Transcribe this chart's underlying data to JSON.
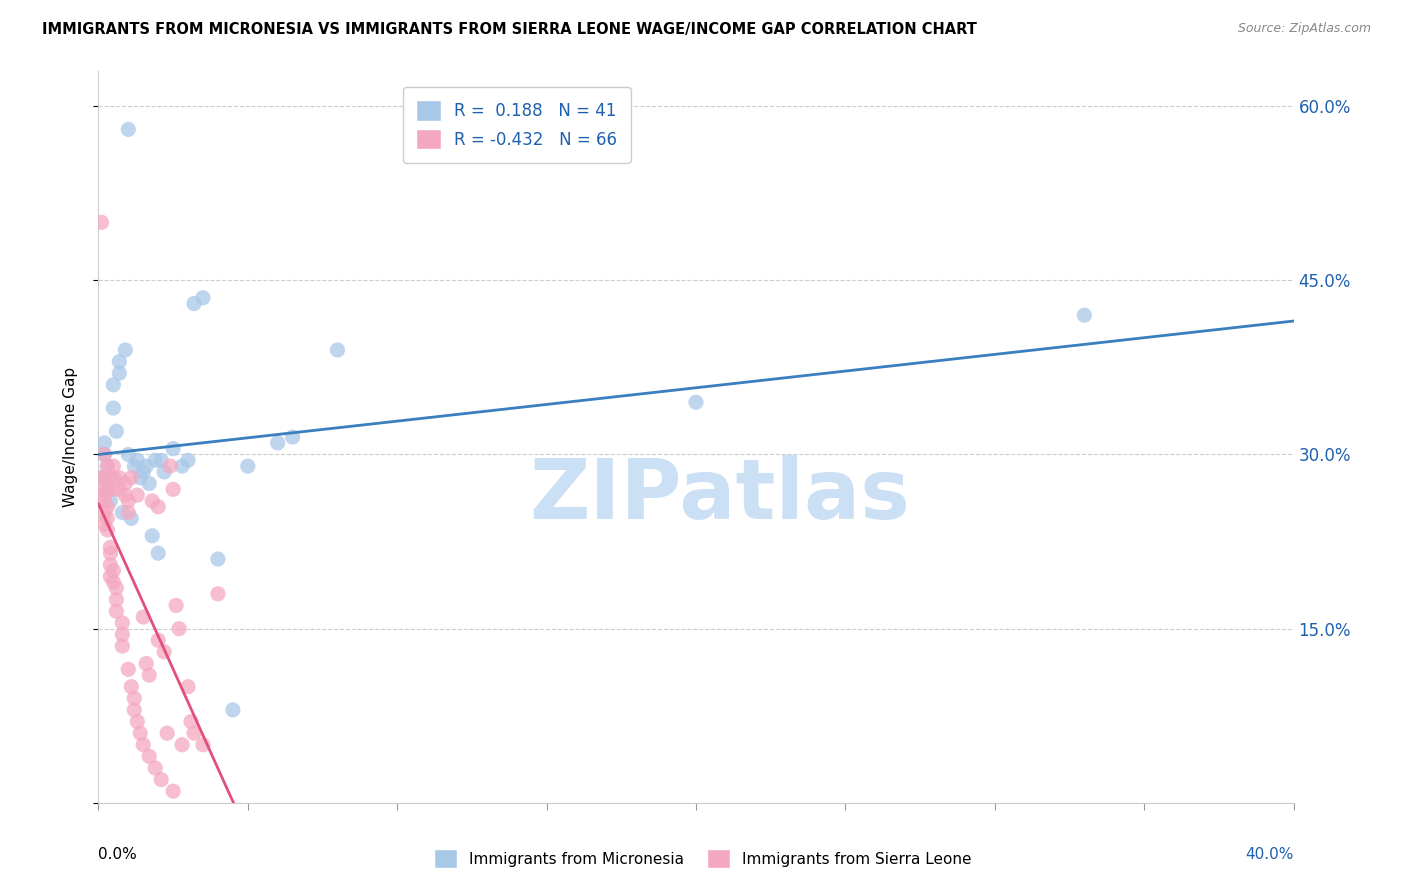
{
  "title": "IMMIGRANTS FROM MICRONESIA VS IMMIGRANTS FROM SIERRA LEONE WAGE/INCOME GAP CORRELATION CHART",
  "source": "Source: ZipAtlas.com",
  "ylabel": "Wage/Income Gap",
  "y_ticks": [
    0.0,
    0.15,
    0.3,
    0.45,
    0.6
  ],
  "y_tick_labels_right": [
    "",
    "15.0%",
    "30.0%",
    "45.0%",
    "60.0%"
  ],
  "xlim": [
    0.0,
    0.4
  ],
  "ylim": [
    0.0,
    0.63
  ],
  "micronesia_R": 0.188,
  "micronesia_N": 41,
  "sierraleone_R": -0.432,
  "sierraleone_N": 66,
  "micronesia_color": "#a8c8e8",
  "sierraleone_color": "#f4a8c0",
  "micronesia_line_color": "#3a7fbf",
  "sierraleone_line_color": "#e0507a",
  "legend_color": "#2060b0",
  "watermark": "ZIPatlas",
  "watermark_color": "#cce0f5",
  "micronesia_x": [
    0.001,
    0.002,
    0.002,
    0.003,
    0.003,
    0.004,
    0.004,
    0.005,
    0.005,
    0.006,
    0.007,
    0.007,
    0.008,
    0.009,
    0.01,
    0.011,
    0.012,
    0.013,
    0.014,
    0.015,
    0.016,
    0.017,
    0.018,
    0.019,
    0.02,
    0.021,
    0.022,
    0.025,
    0.028,
    0.03,
    0.032,
    0.035,
    0.04,
    0.045,
    0.05,
    0.06,
    0.065,
    0.08,
    0.2,
    0.33,
    0.01
  ],
  "micronesia_y": [
    0.28,
    0.3,
    0.31,
    0.27,
    0.29,
    0.26,
    0.28,
    0.34,
    0.36,
    0.32,
    0.37,
    0.38,
    0.25,
    0.39,
    0.3,
    0.245,
    0.29,
    0.295,
    0.28,
    0.285,
    0.29,
    0.275,
    0.23,
    0.295,
    0.215,
    0.295,
    0.285,
    0.305,
    0.29,
    0.295,
    0.43,
    0.435,
    0.21,
    0.08,
    0.29,
    0.31,
    0.315,
    0.39,
    0.345,
    0.42,
    0.58
  ],
  "sierraleone_x": [
    0.001,
    0.001,
    0.001,
    0.002,
    0.002,
    0.002,
    0.002,
    0.002,
    0.003,
    0.003,
    0.003,
    0.003,
    0.003,
    0.003,
    0.004,
    0.004,
    0.004,
    0.004,
    0.005,
    0.005,
    0.005,
    0.005,
    0.005,
    0.006,
    0.006,
    0.006,
    0.007,
    0.007,
    0.008,
    0.008,
    0.008,
    0.009,
    0.009,
    0.01,
    0.01,
    0.01,
    0.011,
    0.011,
    0.012,
    0.012,
    0.013,
    0.013,
    0.014,
    0.015,
    0.015,
    0.016,
    0.017,
    0.017,
    0.018,
    0.019,
    0.02,
    0.02,
    0.021,
    0.022,
    0.023,
    0.024,
    0.025,
    0.025,
    0.026,
    0.027,
    0.028,
    0.03,
    0.031,
    0.032,
    0.035,
    0.04
  ],
  "sierraleone_y": [
    0.5,
    0.28,
    0.27,
    0.3,
    0.265,
    0.26,
    0.25,
    0.24,
    0.29,
    0.28,
    0.27,
    0.255,
    0.245,
    0.235,
    0.22,
    0.215,
    0.205,
    0.195,
    0.29,
    0.28,
    0.27,
    0.2,
    0.19,
    0.185,
    0.175,
    0.165,
    0.28,
    0.27,
    0.155,
    0.145,
    0.135,
    0.275,
    0.265,
    0.26,
    0.25,
    0.115,
    0.28,
    0.1,
    0.09,
    0.08,
    0.265,
    0.07,
    0.06,
    0.16,
    0.05,
    0.12,
    0.11,
    0.04,
    0.26,
    0.03,
    0.255,
    0.14,
    0.02,
    0.13,
    0.06,
    0.29,
    0.27,
    0.01,
    0.17,
    0.15,
    0.05,
    0.1,
    0.07,
    0.06,
    0.05,
    0.18
  ]
}
